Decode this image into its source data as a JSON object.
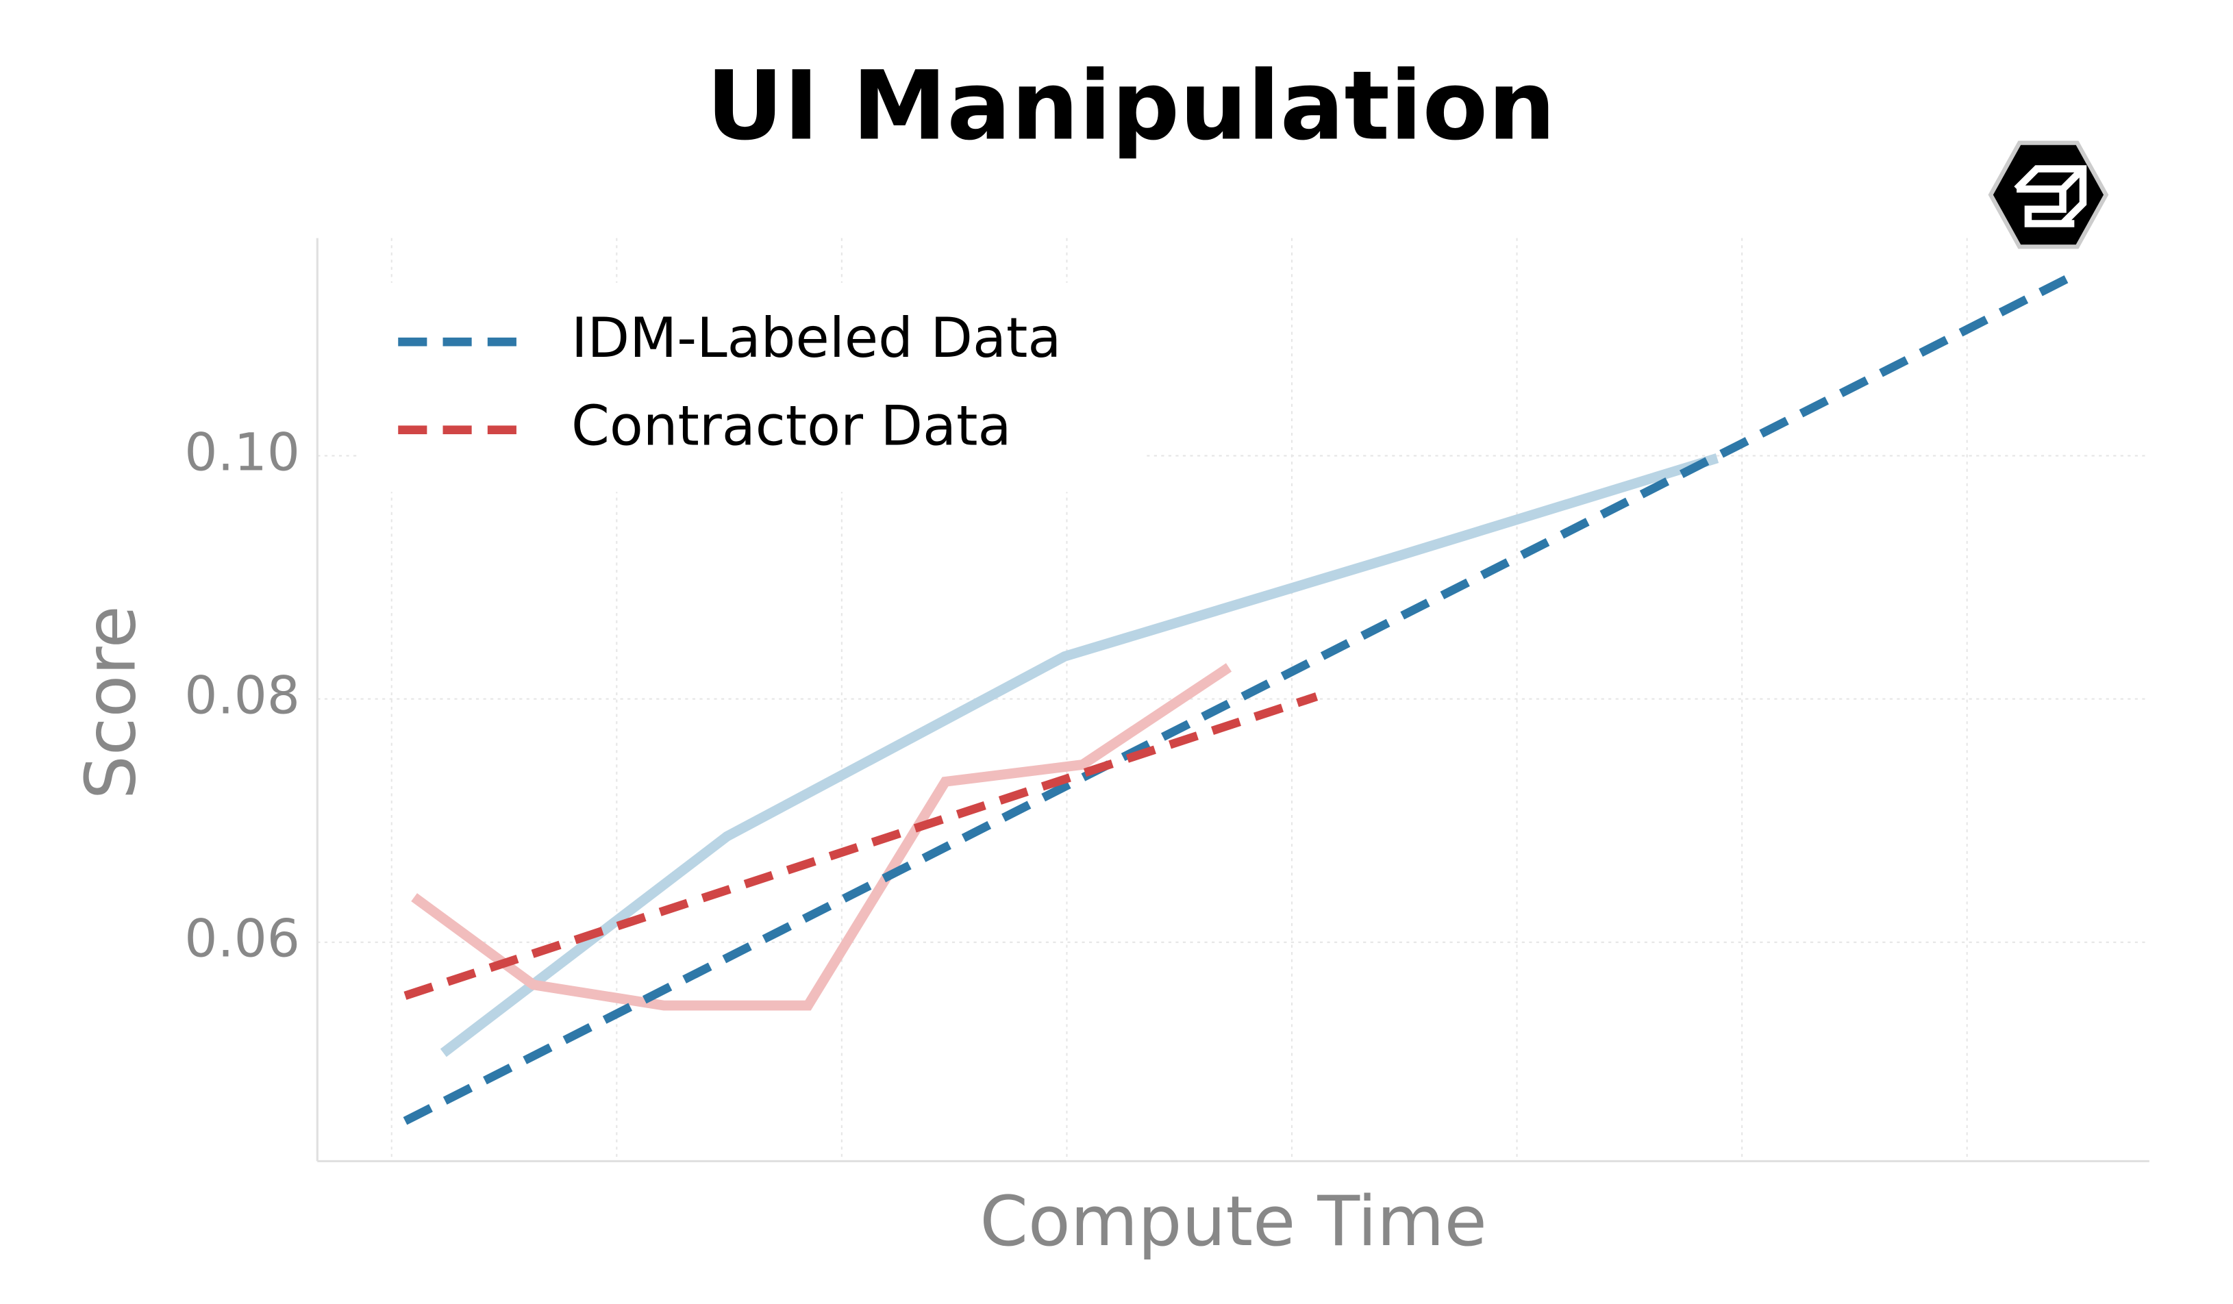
{
  "chart_data": {
    "type": "line",
    "title": "UI Manipulation",
    "xlabel": "Compute Time",
    "ylabel": "Score",
    "xlim": [
      -0.33,
      7.81
    ],
    "xgrid": [
      0,
      1,
      2,
      3,
      4,
      5,
      6,
      7
    ],
    "ylim": [
      0.042,
      0.1179
    ],
    "yticks": [
      0.06,
      0.08,
      {
        "value": 0.1,
        "label": "0.10"
      }
    ],
    "grid": true,
    "legend": "upper left",
    "series": [
      {
        "color": "#b9d4e4",
        "style": "solid",
        "x": [
          0.23,
          1.49,
          2.99,
          4.48,
          5.89
        ],
        "values": [
          0.0509,
          0.0687,
          0.0835,
          0.0918,
          0.0998
        ]
      },
      {
        "color": "#f1bdbd",
        "style": "solid",
        "x": [
          0.1,
          0.63,
          1.21,
          1.85,
          2.46,
          3.07,
          3.72
        ],
        "values": [
          0.0637,
          0.0565,
          0.0548,
          0.0548,
          0.0732,
          0.0746,
          0.0826
        ]
      },
      {
        "name": "IDM-Labeled Data",
        "color": "#2e78a8",
        "style": "dashed",
        "x": [
          0.06,
          7.46
        ],
        "values": [
          0.0453,
          0.1147
        ]
      },
      {
        "name": "Contractor Data",
        "color": "#d04545",
        "style": "dashed",
        "x": [
          0.06,
          4.11
        ],
        "values": [
          0.0556,
          0.0802
        ]
      }
    ]
  }
}
